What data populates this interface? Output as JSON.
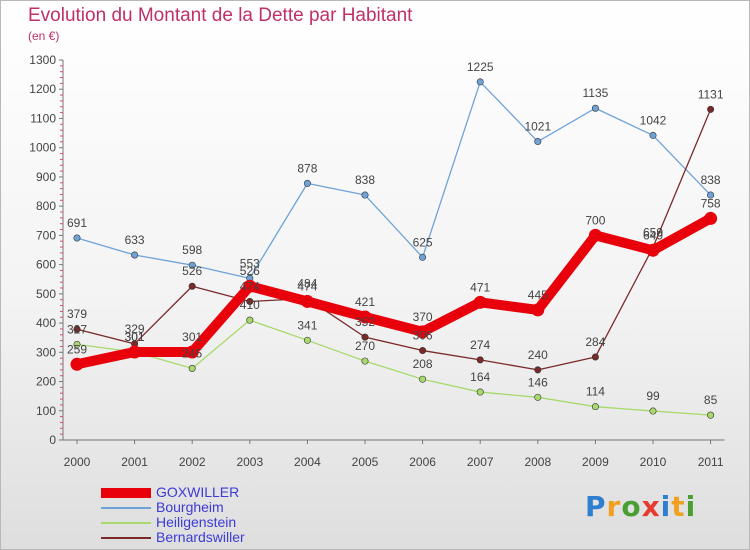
{
  "chart_data": {
    "type": "line",
    "title": "Evolution du Montant de la Dette par Habitant",
    "unit": "(en €)",
    "categories": [
      "2000",
      "2001",
      "2002",
      "2003",
      "2004",
      "2005",
      "2006",
      "2007",
      "2008",
      "2009",
      "2010",
      "2011"
    ],
    "yticks": [
      0,
      100,
      200,
      300,
      400,
      500,
      600,
      700,
      800,
      900,
      1000,
      1100,
      1200,
      1300
    ],
    "ylim": [
      0,
      1300
    ],
    "grid": false,
    "legend_position": "bottom-left",
    "series": [
      {
        "name": "GOXWILLER",
        "color": "#e8000b",
        "emphasis": true,
        "values": [
          259,
          301,
          301,
          526,
          474,
          421,
          370,
          471,
          445,
          700,
          649,
          758
        ]
      },
      {
        "name": "Bourgheim",
        "color": "#6fa3d8",
        "values": [
          691,
          633,
          598,
          553,
          878,
          838,
          625,
          1225,
          1021,
          1135,
          1042,
          838
        ]
      },
      {
        "name": "Heiligenstein",
        "color": "#a8d96c",
        "values": [
          327,
          301,
          245,
          410,
          341,
          270,
          208,
          164,
          146,
          114,
          99,
          85
        ]
      },
      {
        "name": "Bernardswiller",
        "color": "#7a2a2a",
        "values": [
          379,
          329,
          526,
          474,
          484,
          352,
          306,
          274,
          240,
          284,
          659,
          1131
        ]
      }
    ]
  },
  "logo": {
    "text": "Proxiti",
    "colors": [
      "#2f7fd0",
      "#f0a020",
      "#4a9e32",
      "#e63c30",
      "#2f7fd0",
      "#f0a020",
      "#4a9e32"
    ]
  }
}
